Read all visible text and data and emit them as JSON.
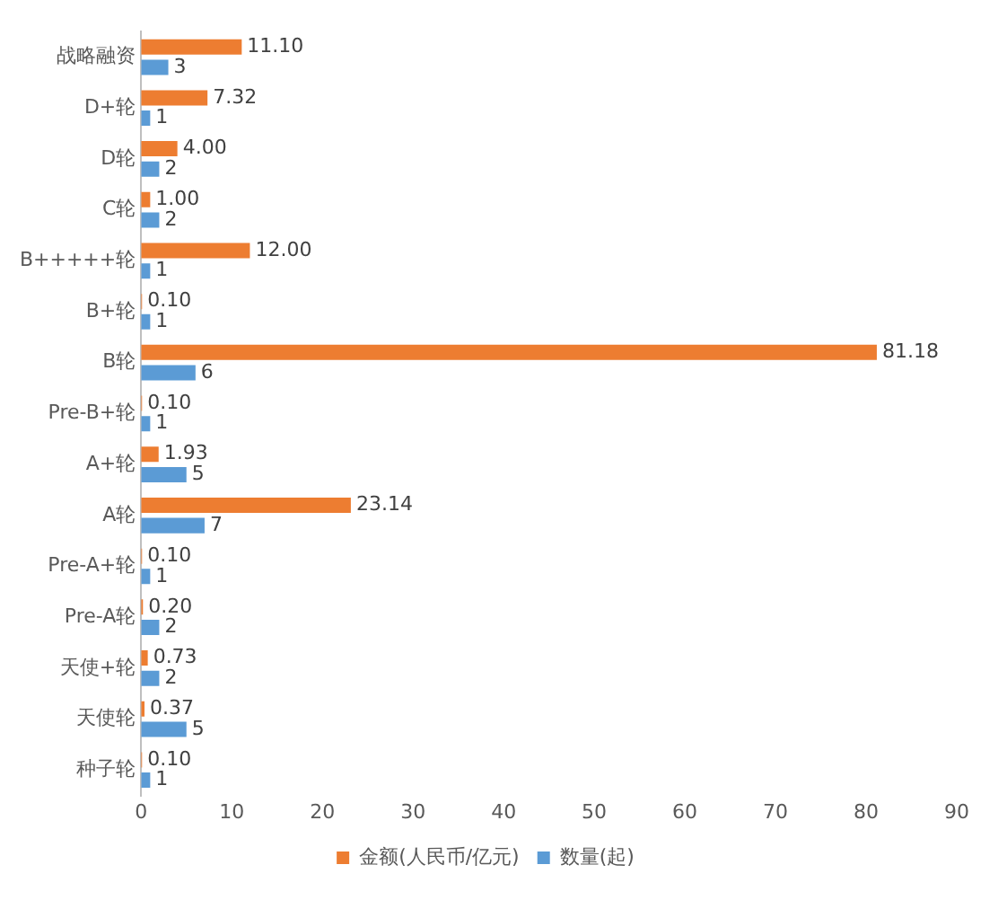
{
  "chart_data": {
    "type": "bar",
    "orientation": "horizontal",
    "categories": [
      "战略融资",
      "D+轮",
      "D轮",
      "C轮",
      "B+++++轮",
      "B+轮",
      "B轮",
      "Pre-B+轮",
      "A+轮",
      "A轮",
      "Pre-A+轮",
      "Pre-A轮",
      "天使+轮",
      "天使轮",
      "种子轮"
    ],
    "series": [
      {
        "name": "金额(人民币/亿元)",
        "color": "#ed7d31",
        "values": [
          11.1,
          7.32,
          4.0,
          1.0,
          12.0,
          0.1,
          81.18,
          0.1,
          1.93,
          23.14,
          0.1,
          0.2,
          0.73,
          0.37,
          0.1
        ],
        "value_labels": [
          "11.10",
          "7.32",
          "4.00",
          "1.00",
          "12.00",
          "0.10",
          "81.18",
          "0.10",
          "1.93",
          "23.14",
          "0.10",
          "0.20",
          "0.73",
          "0.37",
          "0.10"
        ]
      },
      {
        "name": "数量(起)",
        "color": "#5b9bd5",
        "values": [
          3,
          1,
          2,
          2,
          1,
          1,
          6,
          1,
          5,
          7,
          1,
          2,
          2,
          5,
          1
        ],
        "value_labels": [
          "3",
          "1",
          "2",
          "2",
          "1",
          "1",
          "6",
          "1",
          "5",
          "7",
          "1",
          "2",
          "2",
          "5",
          "1"
        ]
      }
    ],
    "xlim": [
      0,
      90
    ],
    "xticks": [
      0,
      10,
      20,
      30,
      40,
      50,
      60,
      70,
      80,
      90
    ],
    "grid": false,
    "legend": "bottom"
  }
}
